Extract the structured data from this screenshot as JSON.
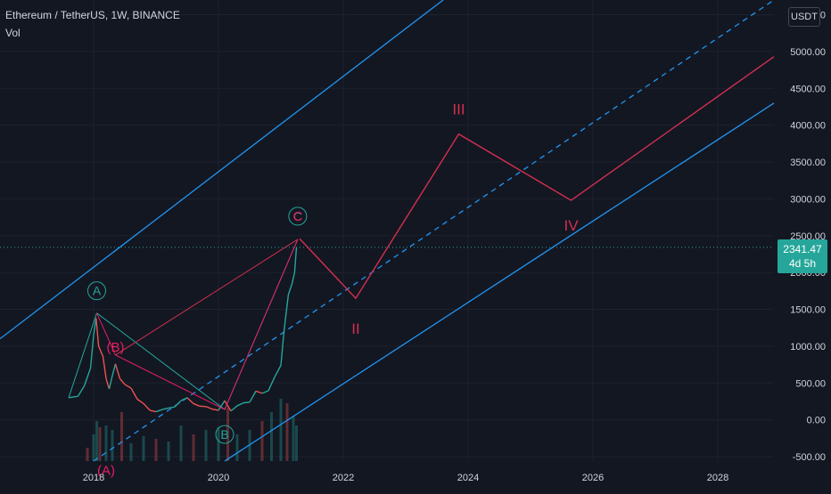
{
  "header": {
    "symbol_line": "Ethereum / TetherUS, 1W, BINANCE",
    "indicator": "Vol"
  },
  "price_scale": {
    "currency": "USDT",
    "last_price": "2341.47",
    "countdown": "4d 5h"
  },
  "colors": {
    "background": "#131722",
    "channel": "#2196f3",
    "wave_path": "#d32f4f",
    "green_wave": "#26a69a",
    "pink_wave": "#e91e63",
    "up_candle": "#26a69a",
    "down_candle": "#ef5350",
    "axis_text": "#d1d4dc"
  },
  "chart_data": {
    "type": "line",
    "title": "Ethereum / TetherUS, 1W, BINANCE",
    "y_axis": {
      "ticks": [
        "5500.00",
        "5000.00",
        "4500.00",
        "4000.00",
        "3500.00",
        "3000.00",
        "2500.00",
        "2000.00",
        "1500.00",
        "1000.00",
        "500.00",
        "0.00",
        "-500.00"
      ],
      "range": [
        -560,
        5700
      ]
    },
    "x_axis": {
      "ticks": [
        "2018",
        "2020",
        "2022",
        "2024",
        "2026",
        "2028"
      ],
      "range": [
        2016.5,
        2028.9
      ]
    },
    "last_price": 2341.47,
    "price_series": [
      [
        2017.6,
        300
      ],
      [
        2017.75,
        320
      ],
      [
        2017.85,
        460
      ],
      [
        2017.95,
        700
      ],
      [
        2018.0,
        1150
      ],
      [
        2018.04,
        1380
      ],
      [
        2018.08,
        1000
      ],
      [
        2018.15,
        860
      ],
      [
        2018.2,
        560
      ],
      [
        2018.25,
        420
      ],
      [
        2018.3,
        600
      ],
      [
        2018.35,
        760
      ],
      [
        2018.42,
        560
      ],
      [
        2018.5,
        480
      ],
      [
        2018.6,
        430
      ],
      [
        2018.7,
        280
      ],
      [
        2018.8,
        220
      ],
      [
        2018.9,
        130
      ],
      [
        2019.0,
        110
      ],
      [
        2019.1,
        140
      ],
      [
        2019.2,
        160
      ],
      [
        2019.3,
        175
      ],
      [
        2019.4,
        260
      ],
      [
        2019.5,
        300
      ],
      [
        2019.6,
        220
      ],
      [
        2019.7,
        185
      ],
      [
        2019.8,
        180
      ],
      [
        2019.9,
        145
      ],
      [
        2020.0,
        130
      ],
      [
        2020.1,
        260
      ],
      [
        2020.2,
        120
      ],
      [
        2020.3,
        190
      ],
      [
        2020.4,
        230
      ],
      [
        2020.5,
        240
      ],
      [
        2020.6,
        390
      ],
      [
        2020.7,
        360
      ],
      [
        2020.8,
        395
      ],
      [
        2020.9,
        580
      ],
      [
        2021.0,
        740
      ],
      [
        2021.05,
        1200
      ],
      [
        2021.12,
        1700
      ],
      [
        2021.18,
        1850
      ],
      [
        2021.22,
        2000
      ],
      [
        2021.25,
        2341
      ]
    ],
    "wave_projection": [
      {
        "label": "",
        "x": 2021.3,
        "y": 2460
      },
      {
        "label": "II",
        "x": 2022.2,
        "y": 1650
      },
      {
        "label": "III",
        "x": 2023.85,
        "y": 3880
      },
      {
        "label": "IV",
        "x": 2025.65,
        "y": 2980
      },
      {
        "label": "",
        "x": 2028.9,
        "y": 4930
      }
    ],
    "green_waves": [
      {
        "label": "A",
        "x": 2018.05,
        "y": 1450
      },
      {
        "label": "B",
        "x": 2020.1,
        "y": 140
      },
      {
        "label": "C",
        "x": 2021.27,
        "y": 2450
      }
    ],
    "pink_waves": [
      {
        "label": "(A)",
        "x": 2018.2,
        "y": 100
      },
      {
        "label": "(B)",
        "x": 2018.35,
        "y": 900
      },
      {
        "label": "C",
        "x": 2021.27,
        "y": 2450
      }
    ],
    "channel_lines": [
      {
        "name": "upper",
        "style": "solid",
        "points": [
          [
            2016.5,
            1100
          ],
          [
            2023.6,
            5700
          ]
        ]
      },
      {
        "name": "middle",
        "style": "dashed",
        "points": [
          [
            2018.0,
            -560
          ],
          [
            2028.9,
            5700
          ]
        ]
      },
      {
        "name": "lower",
        "style": "solid",
        "points": [
          [
            2020.1,
            -560
          ],
          [
            2028.9,
            4300
          ]
        ]
      }
    ],
    "volume": [
      [
        2017.9,
        15
      ],
      [
        2018.0,
        30
      ],
      [
        2018.05,
        45
      ],
      [
        2018.1,
        38
      ],
      [
        2018.2,
        40
      ],
      [
        2018.3,
        35
      ],
      [
        2018.45,
        55
      ],
      [
        2018.6,
        20
      ],
      [
        2018.8,
        28
      ],
      [
        2019.0,
        25
      ],
      [
        2019.2,
        22
      ],
      [
        2019.4,
        40
      ],
      [
        2019.6,
        30
      ],
      [
        2019.8,
        35
      ],
      [
        2020.0,
        38
      ],
      [
        2020.15,
        60
      ],
      [
        2020.3,
        30
      ],
      [
        2020.5,
        35
      ],
      [
        2020.7,
        45
      ],
      [
        2020.85,
        55
      ],
      [
        2021.0,
        70
      ],
      [
        2021.1,
        65
      ],
      [
        2021.2,
        50
      ],
      [
        2021.25,
        40
      ]
    ]
  }
}
